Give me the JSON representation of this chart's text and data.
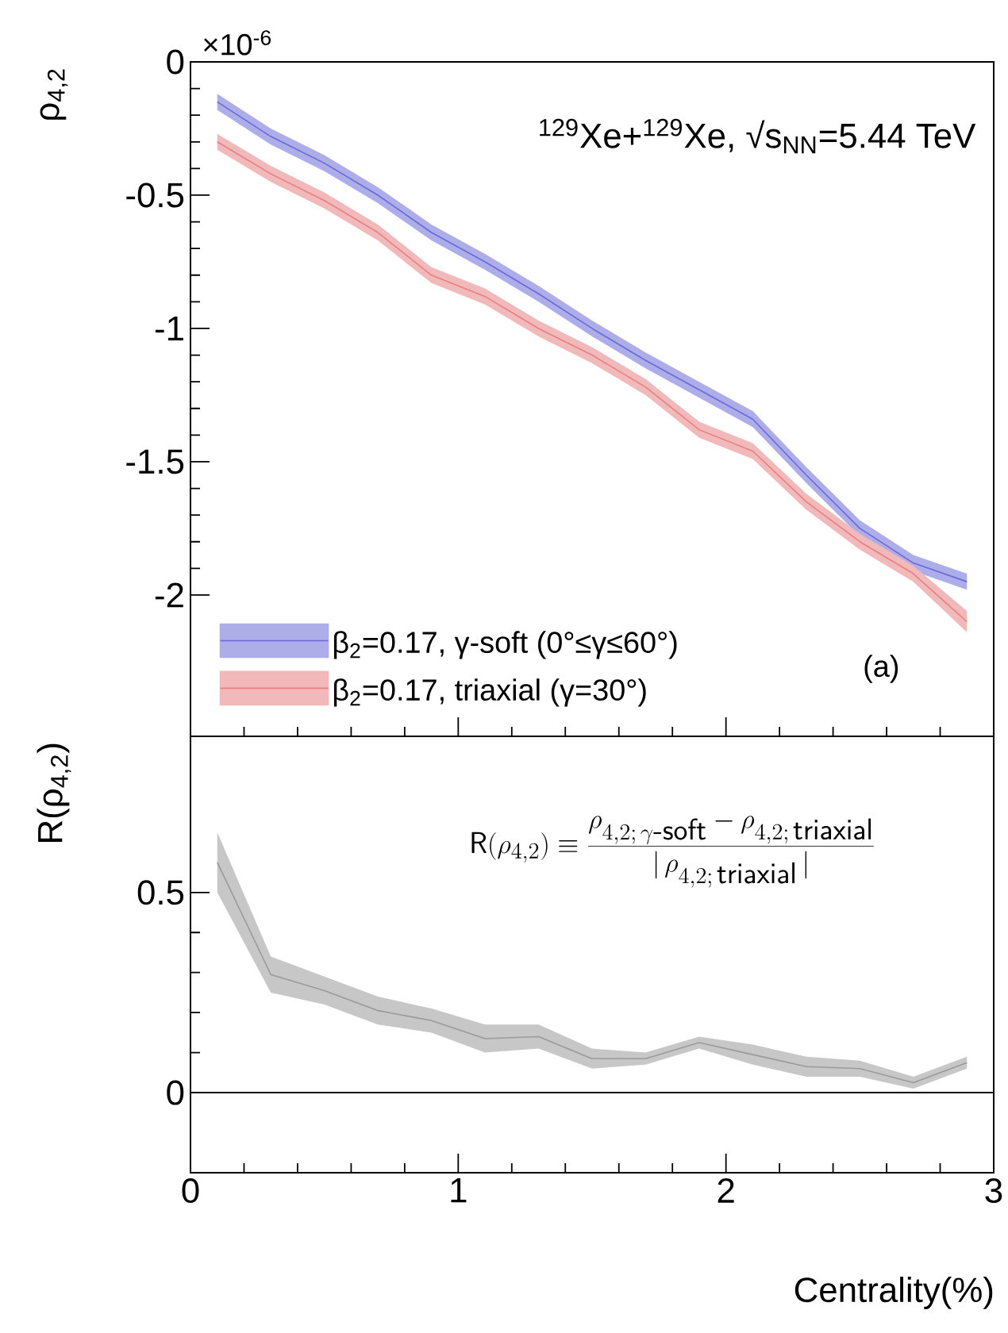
{
  "chart_data": [
    {
      "type": "line",
      "ylabel": "ρ$_{4,2}$",
      "xlim": [
        0,
        3
      ],
      "ylim": [
        -2.53,
        0
      ],
      "xticks": [
        0,
        1,
        2,
        3
      ],
      "yticks": [
        0,
        -0.5,
        -1,
        -1.5,
        -2
      ],
      "tick_labels": "y",
      "legend": "bottom left",
      "annotations": [
        "$^{129}$Xe+$^{129}$Xe, √s$_{NN}$=5.44 TeV",
        "(a)",
        "×10$^{-6}$"
      ],
      "x": [
        0.1,
        0.3,
        0.5,
        0.7,
        0.9,
        1.1,
        1.3,
        1.5,
        1.7,
        1.9,
        2.1,
        2.3,
        2.5,
        2.7,
        2.9
      ],
      "series": [
        {
          "name": "β$_{2}$=0.17, γ-soft (0°≤γ≤60°)",
          "color": "#6a6ad8",
          "values": [
            -0.15,
            -0.28,
            -0.38,
            -0.5,
            -0.64,
            -0.75,
            -0.87,
            -1.0,
            -1.12,
            -1.23,
            -1.34,
            -1.55,
            -1.75,
            -1.88,
            -1.95
          ],
          "lower": [
            -0.18,
            -0.31,
            -0.41,
            -0.53,
            -0.67,
            -0.78,
            -0.9,
            -1.03,
            -1.15,
            -1.26,
            -1.37,
            -1.58,
            -1.78,
            -1.91,
            -1.98
          ],
          "upper": [
            -0.12,
            -0.25,
            -0.35,
            -0.47,
            -0.61,
            -0.72,
            -0.84,
            -0.97,
            -1.09,
            -1.2,
            -1.31,
            -1.52,
            -1.72,
            -1.85,
            -1.92
          ]
        },
        {
          "name": "β$_{2}$=0.17, triaxial (γ=30°)",
          "color": "#e68080",
          "values": [
            -0.3,
            -0.42,
            -0.52,
            -0.64,
            -0.8,
            -0.88,
            -1.0,
            -1.1,
            -1.22,
            -1.38,
            -1.46,
            -1.65,
            -1.8,
            -1.92,
            -2.1
          ],
          "lower": [
            -0.33,
            -0.45,
            -0.55,
            -0.67,
            -0.83,
            -0.91,
            -1.03,
            -1.13,
            -1.25,
            -1.41,
            -1.49,
            -1.68,
            -1.83,
            -1.95,
            -2.14
          ],
          "upper": [
            -0.27,
            -0.39,
            -0.49,
            -0.61,
            -0.77,
            -0.85,
            -0.97,
            -1.07,
            -1.19,
            -1.35,
            -1.43,
            -1.62,
            -1.77,
            -1.89,
            -2.06
          ]
        }
      ]
    },
    {
      "type": "line",
      "ylabel": "R(ρ$_{4,2}$)",
      "xlabel": "Centrality(%)",
      "xlim": [
        0,
        3
      ],
      "ylim": [
        -0.2,
        0.89
      ],
      "xticks": [
        0,
        1,
        2,
        3
      ],
      "yticks": [
        0,
        0.5
      ],
      "annotations": [
        "\\mathsf{R}(\\rho_{4,2}) \\equiv \\frac{\\rho_{4,2;\\,\\gamma\\textsf{-soft}}-\\rho_{4,2;\\,\\textsf{triaxial}}}{|\\,\\rho_{4,2;\\,\\textsf{triaxial}}\\,|}"
      ],
      "ref_lines": [
        {
          "axis": "y",
          "value": 0,
          "color": "#000000"
        }
      ],
      "x": [
        0.1,
        0.3,
        0.5,
        0.7,
        0.9,
        1.1,
        1.3,
        1.5,
        1.7,
        1.9,
        2.1,
        2.3,
        2.5,
        2.7,
        2.9
      ],
      "series": [
        {
          "color": "#9a9a9a",
          "values": [
            0.575,
            0.295,
            0.255,
            0.205,
            0.18,
            0.135,
            0.14,
            0.085,
            0.085,
            0.125,
            0.095,
            0.065,
            0.06,
            0.025,
            0.075
          ],
          "lower": [
            0.5,
            0.25,
            0.22,
            0.17,
            0.15,
            0.1,
            0.11,
            0.06,
            0.07,
            0.11,
            0.07,
            0.04,
            0.04,
            0.01,
            0.06
          ],
          "upper": [
            0.65,
            0.34,
            0.29,
            0.24,
            0.21,
            0.17,
            0.17,
            0.11,
            0.1,
            0.14,
            0.12,
            0.09,
            0.08,
            0.04,
            0.09
          ]
        }
      ]
    }
  ]
}
